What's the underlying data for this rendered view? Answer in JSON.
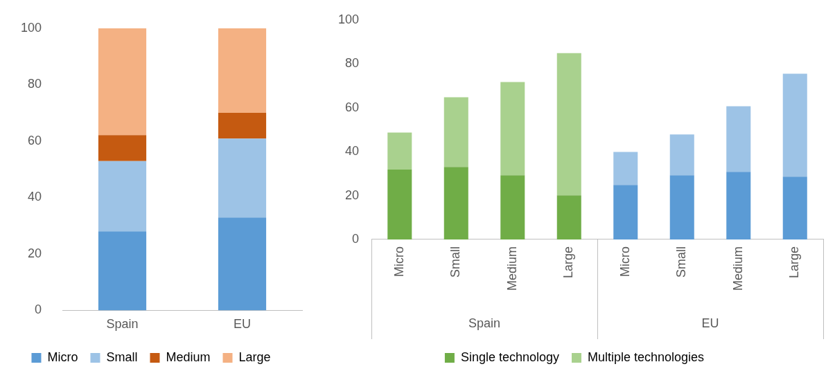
{
  "chart_data": [
    {
      "type": "bar",
      "stacked": true,
      "categories": [
        "Spain",
        "EU"
      ],
      "series": [
        {
          "name": "Micro",
          "color": "#5b9bd5",
          "values": [
            28,
            32.9
          ]
        },
        {
          "name": "Small",
          "color": "#9dc3e6",
          "values": [
            24.9,
            28
          ]
        },
        {
          "name": "Medium",
          "color": "#c55a11",
          "values": [
            9.2,
            9.1
          ]
        },
        {
          "name": "Large",
          "color": "#f4b183",
          "values": [
            37.9,
            30
          ]
        }
      ],
      "ylim": [
        0,
        100
      ],
      "yticks": [
        0,
        20,
        40,
        60,
        80,
        100
      ],
      "grid": false,
      "legend": "bottom"
    },
    {
      "type": "bar",
      "stacked": true,
      "categories": [
        "Micro",
        "Small",
        "Medium",
        "Large",
        "Micro",
        "Small",
        "Medium",
        "Large"
      ],
      "series": [
        {
          "name": "Single technology",
          "colors": [
            "#70ad47",
            "#70ad47",
            "#70ad47",
            "#70ad47",
            "#5b9bd5",
            "#5b9bd5",
            "#5b9bd5",
            "#5b9bd5"
          ],
          "values": [
            31.8,
            33,
            29.2,
            20.1,
            24.8,
            29.2,
            30.8,
            28.6
          ]
        },
        {
          "name": "Multiple technologies",
          "colors": [
            "#a9d18e",
            "#a9d18e",
            "#a9d18e",
            "#a9d18e",
            "#9dc3e6",
            "#9dc3e6",
            "#9dc3e6",
            "#9dc3e6"
          ],
          "values": [
            16.9,
            31.8,
            42.5,
            64.8,
            15.1,
            18.6,
            29.9,
            46.9
          ]
        }
      ],
      "annotations": [
        "Spain",
        "EU"
      ],
      "ylim": [
        0,
        100
      ],
      "yticks": [
        0,
        20,
        40,
        60,
        80,
        100
      ],
      "grid": false,
      "legend": "bottom"
    }
  ]
}
